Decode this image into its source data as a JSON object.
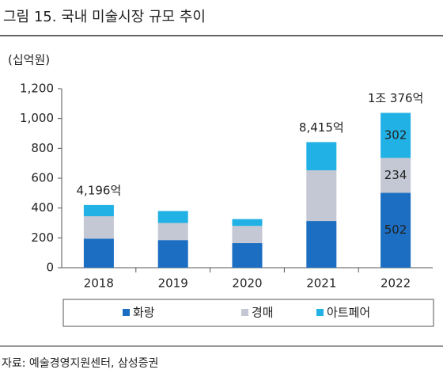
{
  "chart_data": {
    "type": "stacked_bar",
    "title": "그림 15. 국내 미술시장 규모 추이",
    "y_unit_label": "(십억원)",
    "source": "자료: 예술경영지원센터, 삼성증권",
    "categories": [
      "2018",
      "2019",
      "2020",
      "2021",
      "2022"
    ],
    "series": [
      {
        "name": "화랑",
        "color": "#1b6ec2",
        "values": [
          195,
          185,
          165,
          313,
          502
        ],
        "value_labels": [
          null,
          null,
          null,
          null,
          "502"
        ]
      },
      {
        "name": "경매",
        "color": "#c4c7d4",
        "values": [
          150,
          115,
          115,
          340,
          234
        ],
        "value_labels": [
          null,
          null,
          null,
          null,
          "234"
        ]
      },
      {
        "name": "아트페어",
        "color": "#22b1e5",
        "values": [
          75,
          80,
          46,
          189,
          302
        ],
        "value_labels": [
          null,
          null,
          null,
          null,
          "302"
        ]
      }
    ],
    "annotations": [
      {
        "x": "2018",
        "text": "4,196억"
      },
      {
        "x": "2021",
        "text": "8,415억"
      },
      {
        "x": "2022",
        "text": "1조 376억"
      }
    ],
    "ylim": [
      0,
      1200
    ],
    "yticks": [
      0,
      200,
      400,
      600,
      800,
      {
        "value": 1000,
        "label": "1,000"
      },
      {
        "value": 1200,
        "label": "1,200"
      }
    ],
    "legend": "bottom"
  }
}
